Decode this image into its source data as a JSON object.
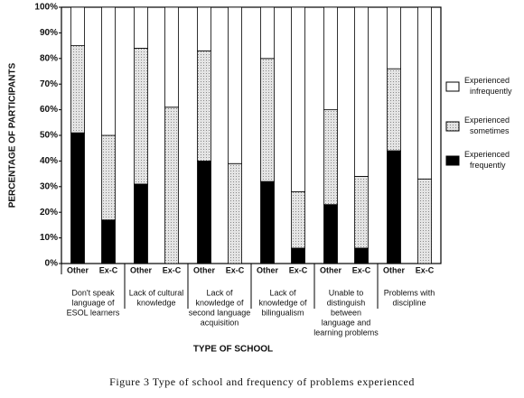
{
  "chart_data": {
    "type": "stacked-bar",
    "y_label": "PERCENTAGE OF PARTICIPANTS",
    "x_label": "TYPE OF SCHOOL",
    "caption": "Figure 3   Type of school and frequency of problems experienced",
    "categories": [
      "Other",
      "Ex-C",
      "Other",
      "Ex-C",
      "Other",
      "Ex-C",
      "Other",
      "Ex-C",
      "Other",
      "Ex-C",
      "Other",
      "Ex-C"
    ],
    "groups": [
      [
        "Don't speak",
        "language of",
        "ESOL learners"
      ],
      [
        "Lack of cultural",
        "knowledge"
      ],
      [
        "Lack of",
        "knowledge of",
        "second language",
        "acquisition"
      ],
      [
        "Lack of",
        "knowledge of",
        "bilingualism"
      ],
      [
        "Unable to",
        "distinguish",
        "between",
        "language and",
        "learning problems"
      ],
      [
        "Problems with",
        "discipline"
      ]
    ],
    "series": [
      {
        "name": "Experienced infrequently",
        "color": "#ffffff",
        "values": [
          15,
          50,
          16,
          39,
          17,
          61,
          20,
          72,
          40,
          66,
          24,
          67
        ]
      },
      {
        "name": "Experienced sometimes",
        "color": "#c8c8c8",
        "values": [
          34,
          33,
          53,
          61,
          43,
          39,
          48,
          22,
          37,
          28,
          32,
          33
        ]
      },
      {
        "name": "Experienced frequently",
        "color": "#000000",
        "values": [
          51,
          17,
          31,
          0,
          40,
          0,
          32,
          6,
          23,
          6,
          44,
          0
        ]
      }
    ],
    "ylim": [
      0,
      100
    ],
    "yticks": [
      {
        "value": 0,
        "label": "0%"
      },
      {
        "value": 10,
        "label": "10%"
      },
      {
        "value": 20,
        "label": "20%"
      },
      {
        "value": 30,
        "label": "30%"
      },
      {
        "value": 40,
        "label": "40%"
      },
      {
        "value": 50,
        "label": "50%"
      },
      {
        "value": 60,
        "label": "60%"
      },
      {
        "value": 70,
        "label": "70%"
      },
      {
        "value": 80,
        "label": "80%"
      },
      {
        "value": 90,
        "label": "90%"
      },
      {
        "value": 100,
        "label": "100%"
      }
    ],
    "grid": false
  }
}
